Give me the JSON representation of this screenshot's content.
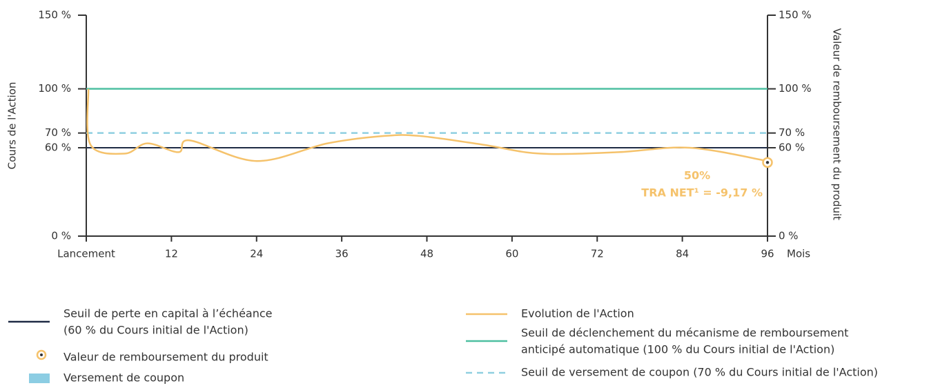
{
  "chart_data": {
    "type": "line",
    "y_label": "Cours de l'Action",
    "y2_label": "Valeur de remboursement du produit",
    "x_unit": "Mois",
    "xlim": [
      0,
      96
    ],
    "xticks": [
      {
        "value": 0,
        "label": "Lancement"
      },
      12,
      24,
      36,
      48,
      60,
      72,
      84,
      96
    ],
    "ylim": [
      0,
      150
    ],
    "yticks": [
      {
        "value": 0,
        "label": "0 %"
      },
      {
        "value": 60,
        "label": "60 %"
      },
      {
        "value": 70,
        "label": "70 %"
      },
      {
        "value": 100,
        "label": "100 %"
      },
      {
        "value": 150,
        "label": "150 %"
      }
    ],
    "y2lim": [
      0,
      150
    ],
    "y2ticks": [
      {
        "value": 0,
        "label": "0 %"
      },
      {
        "value": 60,
        "label": "60 %"
      },
      {
        "value": 70,
        "label": "70 %"
      },
      {
        "value": 100,
        "label": "100 %"
      },
      {
        "value": 150,
        "label": "150 %"
      }
    ],
    "series": [
      {
        "color": "#4dbfa0",
        "style": "solid",
        "x": [
          0,
          96
        ],
        "values": [
          100,
          100
        ]
      },
      {
        "color": "#8fcfe0",
        "style": "dashed",
        "x": [
          0,
          96
        ],
        "values": [
          70,
          70
        ]
      },
      {
        "color": "#1e2a44",
        "style": "solid",
        "x": [
          0,
          96
        ],
        "values": [
          60,
          60
        ]
      },
      {
        "color": "#f5c26b",
        "style": "smooth",
        "x": [
          0.3,
          0.6,
          5.4,
          8.6,
          13,
          14.6,
          24,
          34,
          42,
          47,
          56,
          64,
          75,
          85,
          96
        ],
        "values": [
          100,
          62,
          56,
          63,
          57,
          65,
          51,
          63,
          68,
          68,
          62,
          56,
          57,
          60,
          51
        ]
      }
    ],
    "product_value": {
      "x": 96,
      "value": 50,
      "color": "#f5c26b"
    },
    "annotations": [
      "50%",
      "TRA NET¹ = -9,17 %"
    ],
    "legend": [
      {
        "label": [
          "Seuil de perte en capital à l’échéance",
          "(60 % du Cours initial de l'Action)"
        ],
        "symbol": "line",
        "color": "#1e2a44"
      },
      {
        "label": [
          "Valeur de remboursement du produit"
        ],
        "symbol": "point",
        "color": "#f5c26b"
      },
      {
        "label": [
          "Versement de coupon"
        ],
        "symbol": "rect",
        "color": "#8ccde3"
      },
      {
        "label": [
          "Evolution de l'Action"
        ],
        "symbol": "line",
        "color": "#f5c26b"
      },
      {
        "label": [
          "Seuil de déclenchement du mécanisme de remboursement",
          "anticipé automatique (100 % du Cours initial de l'Action)"
        ],
        "symbol": "line",
        "color": "#4dbfa0"
      },
      {
        "label": [
          "Seuil de versement de coupon (70 % du Cours initial de l'Action)"
        ],
        "symbol": "dashed",
        "color": "#8fcfe0"
      }
    ]
  }
}
